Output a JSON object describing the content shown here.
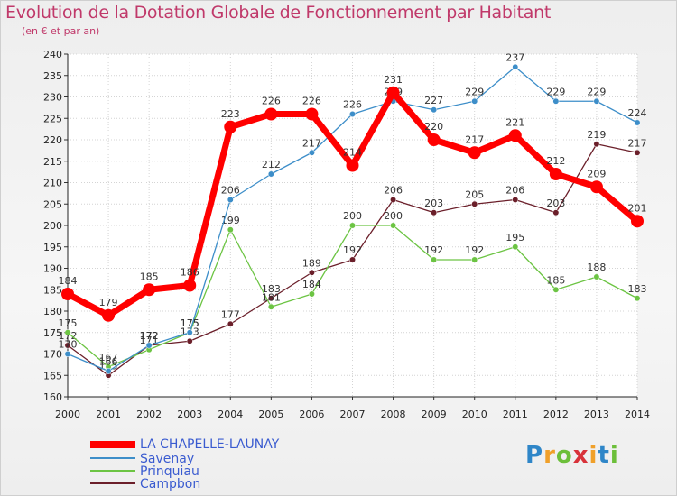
{
  "chart_data": {
    "type": "line",
    "title": "Evolution de la Dotation Globale de Fonctionnement par Habitant",
    "subtitle": "(en € et par an)",
    "xlabel": "",
    "ylabel": "",
    "x": [
      "2000",
      "2001",
      "2002",
      "2003",
      "2004",
      "2005",
      "2006",
      "2007",
      "2008",
      "2009",
      "2010",
      "2011",
      "2012",
      "2013",
      "2014"
    ],
    "ylim": [
      160,
      240
    ],
    "yticks": [
      160,
      165,
      170,
      175,
      180,
      185,
      190,
      195,
      200,
      205,
      210,
      215,
      220,
      225,
      230,
      235,
      240
    ],
    "grid": true,
    "legend_position": "bottom-left",
    "series": [
      {
        "name": "LA CHAPELLE-LAUNAY",
        "color": "#ff0000",
        "values": [
          184,
          179,
          185,
          186,
          223,
          226,
          226,
          214,
          231,
          220,
          217,
          221,
          212,
          209,
          201
        ]
      },
      {
        "name": "Savenay",
        "color": "#3d8ec9",
        "values": [
          170,
          166,
          172,
          175,
          206,
          212,
          217,
          226,
          229,
          227,
          229,
          237,
          229,
          229,
          224
        ]
      },
      {
        "name": "Prinquiau",
        "color": "#6cc443",
        "values": [
          175,
          167,
          171,
          175,
          199,
          181,
          184,
          200,
          200,
          192,
          192,
          195,
          185,
          188,
          183
        ]
      },
      {
        "name": "Campbon",
        "color": "#6b1f2a",
        "values": [
          172,
          165,
          172,
          173,
          177,
          183,
          189,
          192,
          206,
          203,
          205,
          206,
          203,
          219,
          217
        ]
      }
    ]
  },
  "logo": {
    "letters": [
      "P",
      "r",
      "o",
      "x",
      "i",
      "t",
      "i"
    ],
    "colors": [
      "#2f86c8",
      "#f0a02a",
      "#6cbf3a",
      "#d8323a",
      "#f0a02a",
      "#2f86c8",
      "#6cbf3a"
    ]
  }
}
